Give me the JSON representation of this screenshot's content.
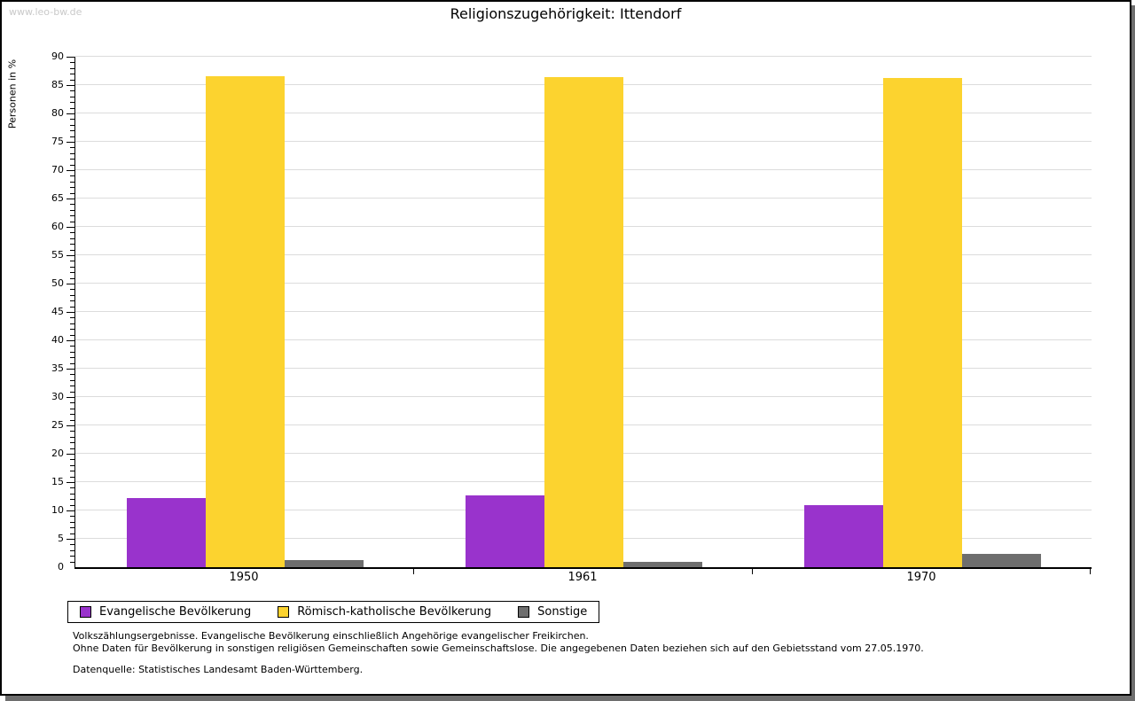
{
  "watermark": "www.leo-bw.de",
  "chart_data": {
    "type": "bar",
    "title": "Religionszugehörigkeit: Ittendorf",
    "ylabel": "Personen in %",
    "xlabel": "",
    "categories": [
      "1950",
      "1961",
      "1970"
    ],
    "series": [
      {
        "name": "Evangelische Bevölkerung",
        "color": "#9933cc",
        "values": [
          12.2,
          12.7,
          11.0
        ]
      },
      {
        "name": "Römisch-katholische Bevölkerung",
        "color": "#fcd32f",
        "values": [
          86.5,
          86.4,
          86.3
        ]
      },
      {
        "name": "Sonstige",
        "color": "#6e6e6e",
        "values": [
          1.2,
          0.9,
          2.4
        ]
      }
    ],
    "ylim": [
      0,
      90
    ],
    "ytick_step": 5,
    "yminor_step": 1,
    "grid": true,
    "legend_position": "bottom"
  },
  "footnotes": {
    "line1": "Volkszählungsergebnisse. Evangelische Bevölkerung einschließlich Angehörige evangelischer Freikirchen.",
    "line2": "Ohne Daten für Bevölkerung in sonstigen religiösen Gemeinschaften sowie Gemeinschaftslose. Die angegebenen Daten beziehen sich auf den Gebietsstand vom 27.05.1970.",
    "source": "Datenquelle: Statistisches Landesamt Baden-Württemberg."
  },
  "colors": {
    "grid": "#dcdcdc",
    "axis": "#000000",
    "watermark": "#c9c9c9",
    "shadow": "#6e6e6e",
    "swatch_border": "#000000"
  }
}
